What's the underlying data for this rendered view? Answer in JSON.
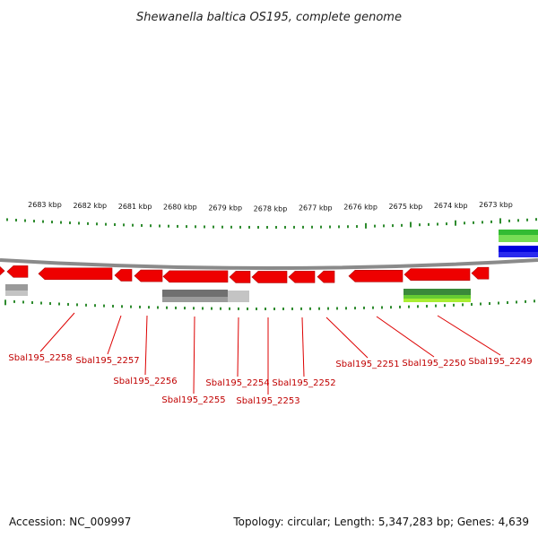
{
  "title": "Shewanella baltica OS195, complete genome",
  "footer": {
    "accession": "Accession: NC_009997",
    "summary": "Topology: circular; Length: 5,347,283 bp; Genes: 4,639"
  },
  "colors": {
    "gene": "#ee0000",
    "gene_dark": "#b00000",
    "tick": "#2e8b2e",
    "backbone": "#8a8a8a",
    "label_line": "#dd0000",
    "gray_feature": "#707070",
    "gray_light": "#c4c4c4",
    "green_feature": "#33bb33",
    "lime_feature": "#aaee33",
    "blue_feature": "#0000dd"
  },
  "scale": {
    "ticks": [
      {
        "label": "2683 kbp",
        "kbp": 2683
      },
      {
        "label": "2682 kbp",
        "kbp": 2682
      },
      {
        "label": "2681 kbp",
        "kbp": 2681
      },
      {
        "label": "2680 kbp",
        "kbp": 2680
      },
      {
        "label": "2679 kbp",
        "kbp": 2679
      },
      {
        "label": "2678 kbp",
        "kbp": 2678
      },
      {
        "label": "2677 kbp",
        "kbp": 2677
      },
      {
        "label": "2676 kbp",
        "kbp": 2676
      },
      {
        "label": "2675 kbp",
        "kbp": 2675
      },
      {
        "label": "2674 kbp",
        "kbp": 2674
      },
      {
        "label": "2673 kbp",
        "kbp": 2673
      }
    ]
  },
  "genes": [
    {
      "label": "Sbal195_2258"
    },
    {
      "label": "Sbal195_2257"
    },
    {
      "label": "Sbal195_2256"
    },
    {
      "label": "Sbal195_2255"
    },
    {
      "label": "Sbal195_2254"
    },
    {
      "label": "Sbal195_2253"
    },
    {
      "label": "Sbal195_2252"
    },
    {
      "label": "Sbal195_2251"
    },
    {
      "label": "Sbal195_2250"
    },
    {
      "label": "Sbal195_2249"
    }
  ]
}
